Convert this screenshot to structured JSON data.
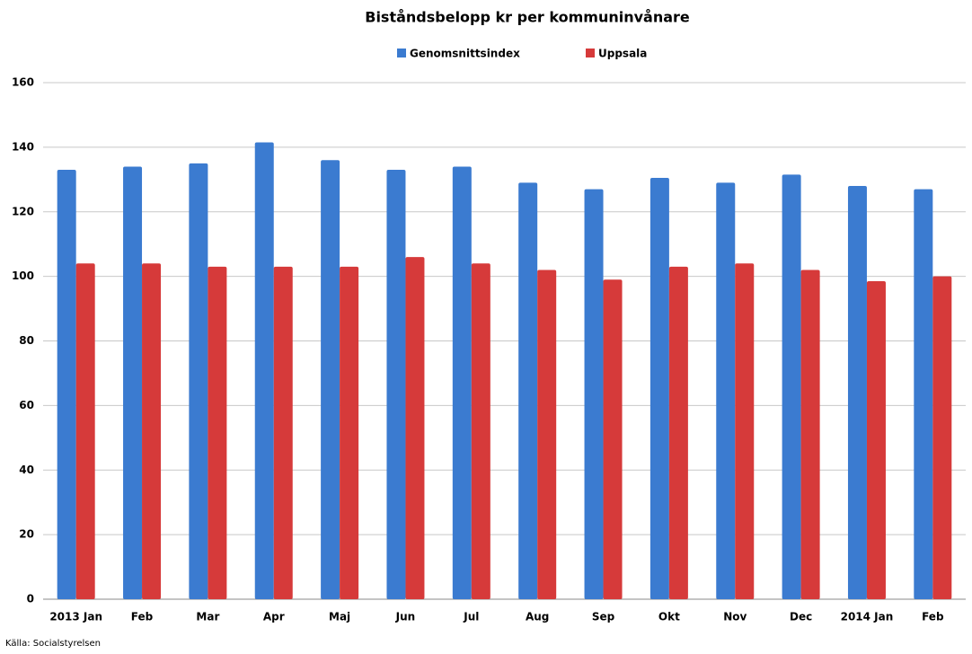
{
  "chart_data": {
    "type": "bar",
    "title": "Biståndsbelopp kr per kommuninvånare",
    "source": "Källa: Socialstyrelsen",
    "categories": [
      "2013 Jan",
      "Feb",
      "Mar",
      "Apr",
      "Maj",
      "Jun",
      "Jul",
      "Aug",
      "Sep",
      "Okt",
      "Nov",
      "Dec",
      "2014 Jan",
      "Feb"
    ],
    "series": [
      {
        "name": "Genomsnittsindex",
        "color": "#3b7bd0",
        "values": [
          133,
          134,
          135,
          141.5,
          136,
          133,
          134,
          129,
          127,
          130.5,
          129,
          131.5,
          128,
          127
        ]
      },
      {
        "name": "Uppsala",
        "color": "#d63a3a",
        "values": [
          104,
          104,
          103,
          103,
          103,
          106,
          104,
          102,
          99,
          103,
          104,
          102,
          98.5,
          100
        ]
      }
    ],
    "ylim": [
      0,
      160
    ],
    "yticks": [
      0,
      20,
      40,
      60,
      80,
      100,
      120,
      140,
      160
    ],
    "grid": true,
    "legend": "top"
  }
}
